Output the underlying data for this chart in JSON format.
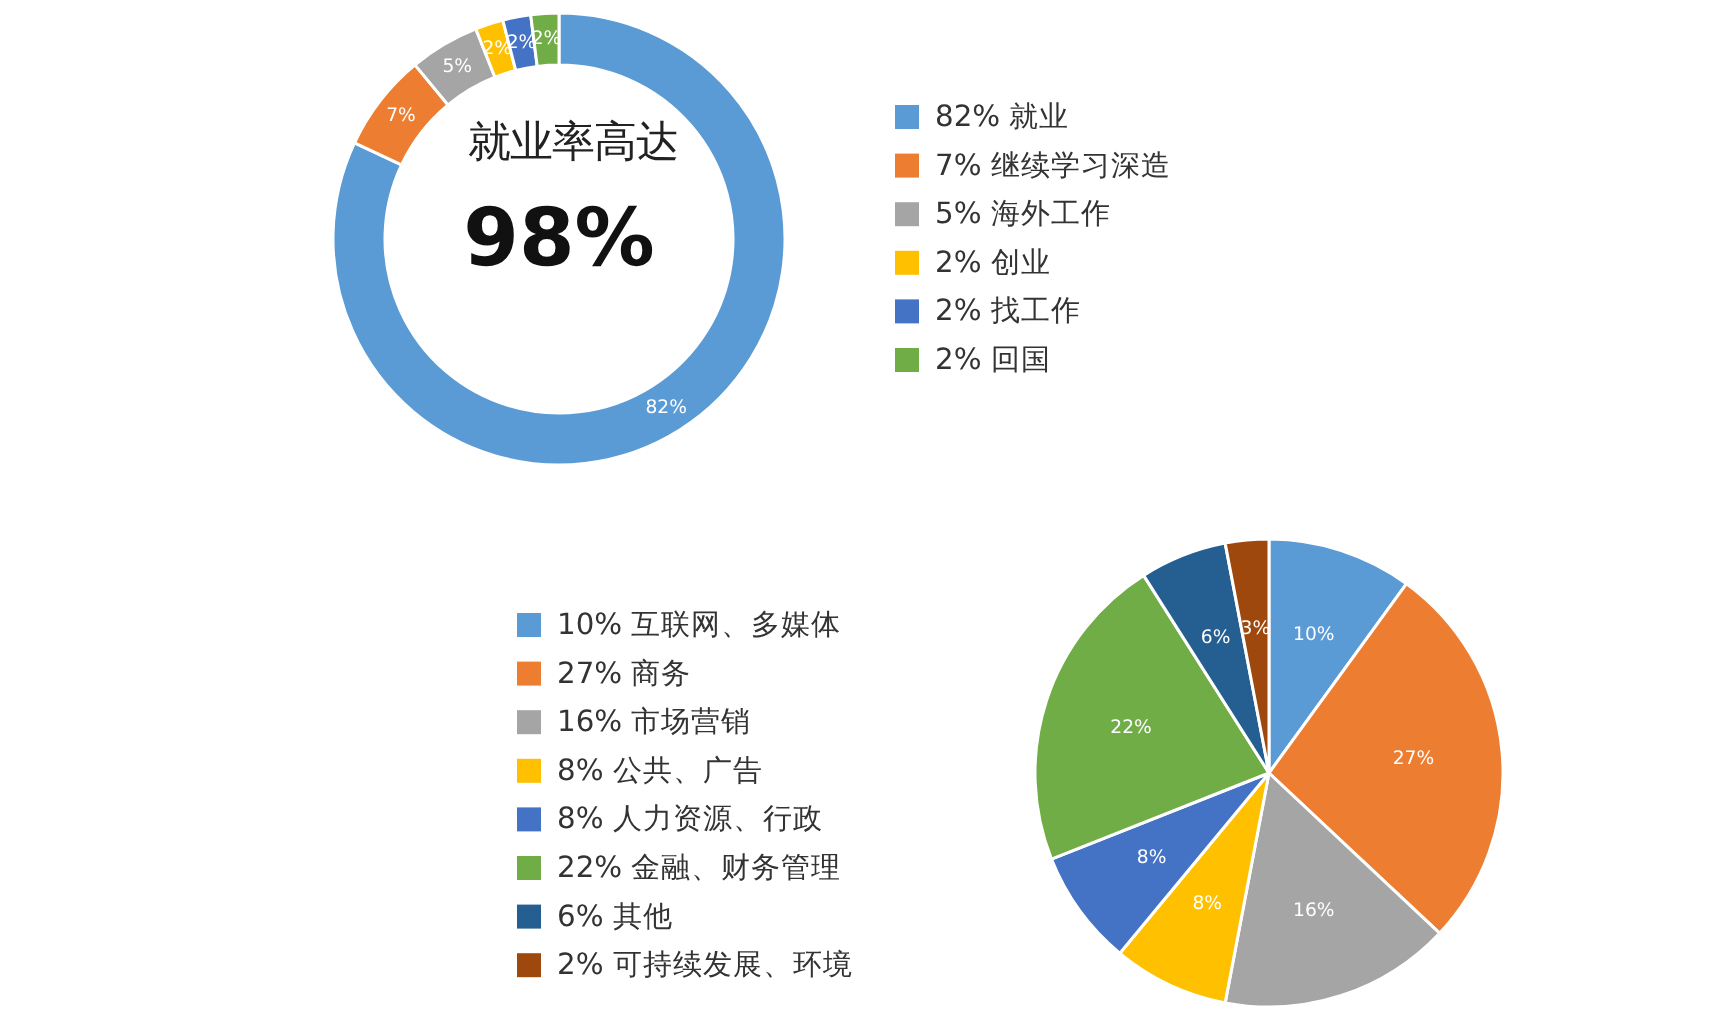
{
  "chart_data": [
    {
      "type": "donut",
      "categories": [
        "82% 就业",
        "7% 继续学习深造",
        "5% 海外工作",
        "2% 创业",
        "2% 找工作",
        "2% 回国"
      ],
      "values": [
        82,
        7,
        5,
        2,
        2,
        2
      ],
      "value_labels": [
        "82%",
        "7%",
        "5%",
        "2%",
        "2%",
        "2%"
      ],
      "colors": [
        "#5b9bd5",
        "#ed7d31",
        "#a5a5a5",
        "#ffc000",
        "#4472c4",
        "#70ad47"
      ],
      "legend": "right",
      "annotations": [
        "就业率高达",
        "98%"
      ]
    },
    {
      "type": "pie",
      "categories": [
        "10% 互联网、多媒体",
        "27% 商务",
        "16% 市场营销",
        "8% 公共、广告",
        "8% 人力资源、行政",
        "22% 金融、财务管理",
        "6% 其他",
        "2% 可持续发展、环境"
      ],
      "values": [
        10,
        27,
        16,
        8,
        8,
        22,
        6,
        3
      ],
      "value_labels": [
        "10%",
        "27%",
        "16%",
        "8%",
        "8%",
        "22%",
        "6%",
        "3%"
      ],
      "colors": [
        "#5b9bd5",
        "#ed7d31",
        "#a5a5a5",
        "#ffc000",
        "#4472c4",
        "#70ad47",
        "#255e91",
        "#9e480e"
      ],
      "legend": "left"
    }
  ]
}
